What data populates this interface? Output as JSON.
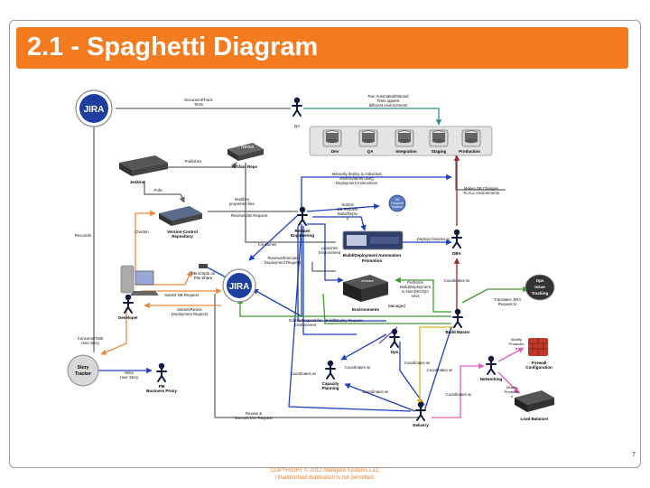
{
  "slide": {
    "title": "2.1 - Spaghetti Diagram",
    "page_number": "7",
    "copyright": "COPYRIGHT © 2012 Stelligent Systems LLC",
    "notice": "Unauthorized duplication is not permitted."
  },
  "nodes": {
    "jira_top": "JIRA",
    "qa": "QA",
    "servers": [
      "Dev",
      "QA",
      "Integration",
      "Staging",
      "Production"
    ],
    "jenkins": "Jenkins",
    "artifact_repo": "Artifact Repo",
    "nexus": "Nexus",
    "version_control": [
      "Version-Control",
      "Repository"
    ],
    "release_engineering": [
      "Release",
      "Engineering"
    ],
    "db_request_system": [
      "DB",
      "Request",
      "System"
    ],
    "build_promotion": [
      "Build/Deployment Automation",
      "Promotion"
    ],
    "dba": "DBA",
    "db_scripts": [
      "DB scripts on",
      "File Share"
    ],
    "jira_center": "JIRA",
    "developer": "Developer",
    "environments": "Environments",
    "vmware": "vmware",
    "ops_issue": [
      "Ops",
      "Issue",
      "Tracking"
    ],
    "build_master": "Build Master",
    "ops": "Ops",
    "managed": "Managed",
    "story_tracker": [
      "Story",
      "Tracker"
    ],
    "pm": [
      "PM",
      "Business Proxy"
    ],
    "capacity_planning": [
      "Capacity",
      "Planning"
    ],
    "networking": "Networking",
    "firewall": [
      "Modify",
      "Productio",
      "n",
      "Firewall",
      "Configuration"
    ],
    "load_balancer": [
      "Modify",
      "Productio",
      "n",
      "Load Balancer"
    ],
    "delivery": "Delivery"
  },
  "edges": {
    "document_tests": [
      "Document/Track",
      "Tests"
    ],
    "run_tests": [
      "Run Automated/Manual",
      "Tests against",
      "different environments"
    ],
    "publishes": "Publishes",
    "polls": "Polls",
    "modifies": [
      "Modifies",
      "properties files"
    ],
    "reviews_db": "Reviews DB Request",
    "checkin": "Checkin",
    "reconcile": "Reconcile",
    "manually_deploy": [
      "Manually deploy to individual",
      "environments using",
      "Deployment Instructions"
    ],
    "submit_db": [
      "Submit",
      "DB Request",
      "Build/Deplo",
      "y"
    ],
    "makes_db": [
      "Makes DB Changes",
      "To ALL environments"
    ],
    "consumes": "Consumes",
    "deploys_binaries": "Deploys binaries to",
    "launches": [
      "Launches",
      "Environment"
    ],
    "reviews_execute": [
      "Reviews/Execute",
      "Deployment Request"
    ],
    "submit_db_request": "Submit DB Request",
    "submit_revise": [
      "Submit/Revise",
      "Deployment Request"
    ],
    "performs_build": [
      "Performs",
      "Build/Deployment",
      "to Non DEV/QA",
      "envs"
    ],
    "coordinates_dba": "Coordinates w/",
    "translates": [
      "Translates JIRA",
      "Request to"
    ],
    "consume_task": [
      "Consume/Task",
      "User Story"
    ],
    "submit_request_env": [
      "Submit  Request for",
      "Environment"
    ],
    "build_deploy_request": "Build/Deploy Request",
    "write_story": [
      "Write",
      "User Story"
    ],
    "coordinates_ops": "Coordinates w/",
    "coordinates_delivery": "Coordinates w/",
    "coordinates_build": "Coordinates w/",
    "coordinates_left": "Coordinates w/",
    "coordinates_capacity": "Coordinates w/",
    "coordinates_net": "Coordinates w/",
    "review_execute_env": [
      "Review &",
      "Execute Env Request"
    ]
  },
  "colors": {
    "accent": "#f47b20",
    "blue": "#1f3fbf",
    "green": "#3a9a2a",
    "orange": "#e88a3a",
    "gray": "#666666",
    "teal": "#2f8f8f",
    "red": "#9a2a2a",
    "pink": "#e060c0",
    "yellow": "#e0b020",
    "purple": "#7a4fb0"
  }
}
